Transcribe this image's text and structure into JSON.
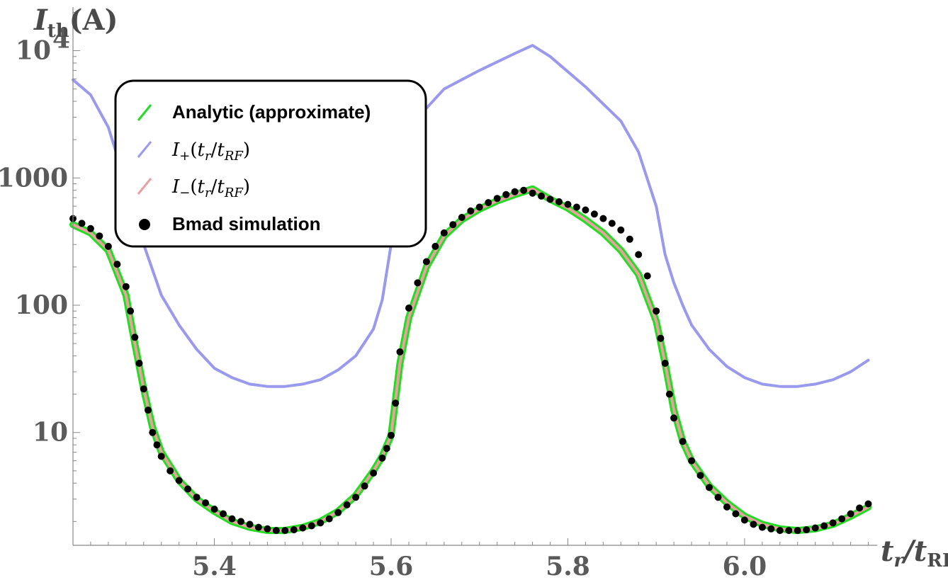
{
  "chart_data": {
    "type": "line",
    "xlabel": "t_r/t_RF",
    "ylabel": "I_th(A)",
    "xlim": [
      5.24,
      6.15
    ],
    "ylim": [
      1.3,
      22000
    ],
    "y_scale": "log",
    "grid": false,
    "legend_position": "top-left",
    "x_ticks": [
      {
        "value": 5.4,
        "label": "5.4"
      },
      {
        "value": 5.6,
        "label": "5.6"
      },
      {
        "value": 5.8,
        "label": "5.8"
      },
      {
        "value": 6.0,
        "label": "6.0"
      }
    ],
    "y_ticks": [
      {
        "value": 10,
        "label": "10"
      },
      {
        "value": 100,
        "label": "100"
      },
      {
        "value": 1000,
        "label": "1000"
      },
      {
        "value": 10000,
        "label": "10",
        "exponent": "4"
      }
    ],
    "series": [
      {
        "name": "Analytic (approximate)",
        "color": "#22dd22",
        "style": "line",
        "x": [
          5.24,
          5.26,
          5.28,
          5.3,
          5.31,
          5.32,
          5.33,
          5.34,
          5.36,
          5.38,
          5.4,
          5.42,
          5.44,
          5.46,
          5.48,
          5.5,
          5.52,
          5.54,
          5.56,
          5.58,
          5.59,
          5.6,
          5.61,
          5.62,
          5.64,
          5.66,
          5.68,
          5.7,
          5.72,
          5.74,
          5.76,
          5.78,
          5.8,
          5.82,
          5.84,
          5.86,
          5.88,
          5.9,
          5.91,
          5.92,
          5.93,
          5.94,
          5.96,
          5.98,
          6.0,
          6.02,
          6.04,
          6.06,
          6.08,
          6.1,
          6.12,
          6.14
        ],
        "values": [
          430,
          370,
          270,
          120,
          50,
          22,
          11,
          7,
          4.2,
          3.0,
          2.4,
          2.0,
          1.8,
          1.7,
          1.7,
          1.8,
          2.0,
          2.4,
          3.2,
          5.0,
          6.5,
          9.5,
          35,
          80,
          200,
          350,
          470,
          570,
          660,
          740,
          820,
          680,
          580,
          470,
          370,
          270,
          175,
          75,
          35,
          15,
          8.5,
          6.0,
          3.8,
          2.8,
          2.2,
          1.9,
          1.75,
          1.7,
          1.75,
          1.9,
          2.2,
          2.6
        ]
      },
      {
        "name": "I+(tr/tRF)",
        "color": "#9999ee",
        "style": "line",
        "x": [
          5.24,
          5.26,
          5.28,
          5.3,
          5.32,
          5.34,
          5.36,
          5.38,
          5.4,
          5.42,
          5.44,
          5.46,
          5.48,
          5.5,
          5.52,
          5.54,
          5.56,
          5.58,
          5.59,
          5.6,
          5.62,
          5.66,
          5.7,
          5.74,
          5.76,
          5.78,
          5.82,
          5.86,
          5.88,
          5.9,
          5.91,
          5.92,
          5.93,
          5.94,
          5.96,
          5.98,
          6.0,
          6.02,
          6.04,
          6.06,
          6.08,
          6.1,
          6.12,
          6.14
        ],
        "values": [
          5900,
          4500,
          2500,
          900,
          300,
          120,
          70,
          45,
          32,
          27,
          24,
          23,
          23,
          24,
          26,
          31,
          40,
          65,
          110,
          300,
          2500,
          5000,
          7000,
          9500,
          11000,
          9000,
          5200,
          2800,
          1600,
          600,
          250,
          150,
          100,
          70,
          45,
          33,
          27,
          24,
          23,
          23,
          24,
          26,
          30,
          37
        ]
      },
      {
        "name": "I-(tr/tRF)",
        "color": "#e8a0a0",
        "style": "line",
        "x": [
          5.24,
          5.26,
          5.28,
          5.3,
          5.31,
          5.32,
          5.33,
          5.34,
          5.36,
          5.38,
          5.4,
          5.42,
          5.44,
          5.46,
          5.48,
          5.5,
          5.52,
          5.54,
          5.56,
          5.58,
          5.59,
          5.6,
          5.61,
          5.62,
          5.64,
          5.66,
          5.68,
          5.7,
          5.72,
          5.74,
          5.76,
          5.78,
          5.8,
          5.82,
          5.84,
          5.86,
          5.88,
          5.9,
          5.91,
          5.92,
          5.93,
          5.94,
          5.96,
          5.98,
          6.0,
          6.02,
          6.04,
          6.06,
          6.08,
          6.1,
          6.12,
          6.14
        ],
        "values": [
          430,
          370,
          270,
          120,
          50,
          22,
          11,
          7,
          4.2,
          3.0,
          2.4,
          2.0,
          1.8,
          1.7,
          1.7,
          1.8,
          2.0,
          2.4,
          3.2,
          5.0,
          6.5,
          9.5,
          35,
          80,
          200,
          350,
          470,
          570,
          660,
          740,
          820,
          680,
          580,
          470,
          370,
          270,
          175,
          75,
          35,
          15,
          8.5,
          6.0,
          3.8,
          2.8,
          2.2,
          1.9,
          1.75,
          1.7,
          1.75,
          1.9,
          2.2,
          2.6
        ]
      },
      {
        "name": "Bmad simulation",
        "color": "#000000",
        "style": "points",
        "x": [
          5.24,
          5.25,
          5.26,
          5.27,
          5.28,
          5.29,
          5.3,
          5.305,
          5.31,
          5.315,
          5.32,
          5.325,
          5.33,
          5.335,
          5.34,
          5.35,
          5.36,
          5.37,
          5.38,
          5.39,
          5.4,
          5.41,
          5.42,
          5.43,
          5.44,
          5.45,
          5.46,
          5.47,
          5.48,
          5.49,
          5.5,
          5.51,
          5.52,
          5.53,
          5.54,
          5.55,
          5.56,
          5.57,
          5.58,
          5.59,
          5.595,
          5.6,
          5.605,
          5.61,
          5.62,
          5.63,
          5.64,
          5.65,
          5.66,
          5.67,
          5.68,
          5.69,
          5.7,
          5.71,
          5.72,
          5.73,
          5.74,
          5.75,
          5.76,
          5.77,
          5.78,
          5.79,
          5.8,
          5.81,
          5.82,
          5.83,
          5.84,
          5.85,
          5.86,
          5.87,
          5.88,
          5.89,
          5.9,
          5.905,
          5.91,
          5.915,
          5.92,
          5.93,
          5.94,
          5.95,
          5.96,
          5.97,
          5.98,
          5.99,
          6.0,
          6.01,
          6.02,
          6.03,
          6.04,
          6.05,
          6.06,
          6.07,
          6.08,
          6.09,
          6.1,
          6.11,
          6.12,
          6.13,
          6.14
        ],
        "values": [
          480,
          440,
          400,
          350,
          290,
          210,
          140,
          90,
          56,
          35,
          22,
          15,
          10,
          8,
          6.5,
          5,
          4.2,
          3.6,
          3.1,
          2.8,
          2.5,
          2.3,
          2.1,
          2.0,
          1.9,
          1.8,
          1.75,
          1.7,
          1.7,
          1.72,
          1.78,
          1.85,
          1.95,
          2.1,
          2.35,
          2.7,
          3.1,
          3.8,
          4.8,
          6.3,
          7.5,
          9.5,
          17,
          43,
          95,
          150,
          220,
          290,
          370,
          430,
          490,
          550,
          590,
          640,
          690,
          740,
          780,
          800,
          760,
          720,
          680,
          650,
          620,
          590,
          560,
          520,
          480,
          440,
          390,
          330,
          250,
          170,
          90,
          55,
          35,
          20,
          13,
          8.5,
          6.0,
          4.6,
          3.7,
          3.1,
          2.6,
          2.3,
          2.05,
          1.9,
          1.8,
          1.75,
          1.7,
          1.7,
          1.7,
          1.72,
          1.78,
          1.85,
          1.95,
          2.1,
          2.3,
          2.55,
          2.75
        ]
      }
    ]
  },
  "legend": {
    "items": [
      {
        "label": "Analytic (approximate)",
        "kind": "text"
      },
      {
        "label": "I+(tr/tRF)",
        "kind": "math",
        "math": "plus"
      },
      {
        "label": "I-(tr/tRF)",
        "kind": "math",
        "math": "minus"
      },
      {
        "label": "Bmad simulation",
        "kind": "text"
      }
    ]
  }
}
